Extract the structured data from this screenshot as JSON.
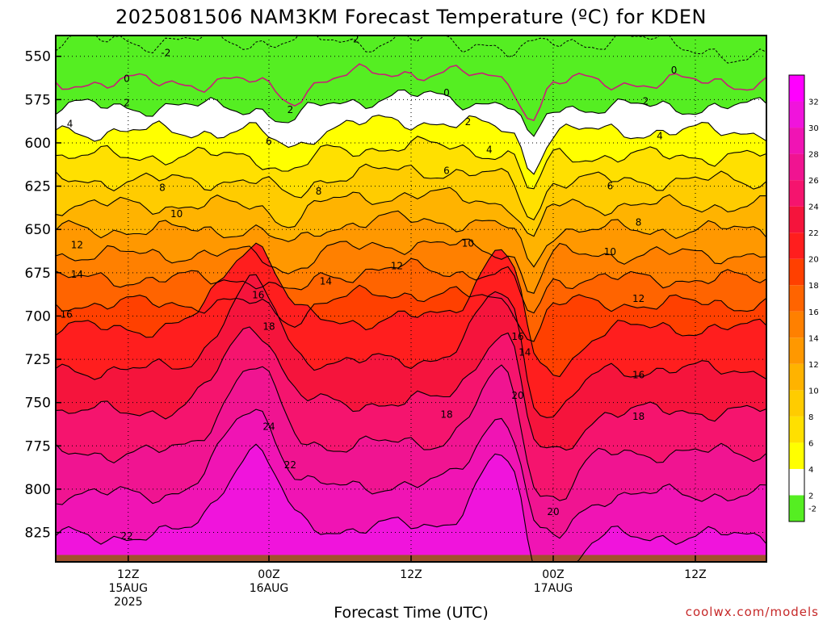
{
  "chart_data": {
    "type": "contour",
    "title": "2025081506 NAM3KM Forecast Temperature (ºC) for KDEN",
    "xlabel": "Forecast Time (UTC)",
    "y_ticks": [
      "550",
      "575",
      "600",
      "625",
      "650",
      "675",
      "700",
      "725",
      "750",
      "775",
      "800",
      "825"
    ],
    "x_ticks": [
      {
        "l1": "12Z",
        "l2": "15AUG",
        "l3": "2025"
      },
      {
        "l1": "00Z",
        "l2": "16AUG",
        "l3": ""
      },
      {
        "l1": "12Z",
        "l2": "",
        "l3": ""
      },
      {
        "l1": "00Z",
        "l2": "17AUG",
        "l3": ""
      },
      {
        "l1": "12Z",
        "l2": "",
        "l3": ""
      }
    ],
    "ylim_hpa": [
      538,
      842
    ],
    "colorbar": [
      {
        "label": "-2",
        "color": "#55ee22"
      },
      {
        "label": "2",
        "color": "#ffffff"
      },
      {
        "label": "4",
        "color": "#ffff00"
      },
      {
        "label": "6",
        "color": "#ffe000"
      },
      {
        "label": "8",
        "color": "#ffcc00"
      },
      {
        "label": "10",
        "color": "#ffb300"
      },
      {
        "label": "12",
        "color": "#ff9800"
      },
      {
        "label": "14",
        "color": "#ff8000"
      },
      {
        "label": "16",
        "color": "#ff6400"
      },
      {
        "label": "18",
        "color": "#ff4000"
      },
      {
        "label": "20",
        "color": "#ff1e1e"
      },
      {
        "label": "22",
        "color": "#f5143c"
      },
      {
        "label": "24",
        "color": "#f5146e"
      },
      {
        "label": "26",
        "color": "#f01491"
      },
      {
        "label": "28",
        "color": "#f014b4"
      },
      {
        "label": "30",
        "color": "#f014dc"
      },
      {
        "label": "32",
        "color": "#ff00ff"
      }
    ],
    "contour_labels": [
      {
        "text": "-2",
        "x": 0.42,
        "p": 540
      },
      {
        "text": "-2",
        "x": 0.155,
        "p": 548
      },
      {
        "text": "0",
        "x": 0.1,
        "p": 563
      },
      {
        "text": "0",
        "x": 0.55,
        "p": 571
      },
      {
        "text": "0",
        "x": 0.87,
        "p": 558
      },
      {
        "text": "2",
        "x": 0.1,
        "p": 577
      },
      {
        "text": "2",
        "x": 0.33,
        "p": 581
      },
      {
        "text": "2",
        "x": 0.58,
        "p": 588
      },
      {
        "text": "2",
        "x": 0.83,
        "p": 576
      },
      {
        "text": "4",
        "x": 0.02,
        "p": 589
      },
      {
        "text": "4",
        "x": 0.61,
        "p": 604
      },
      {
        "text": "4",
        "x": 0.85,
        "p": 596
      },
      {
        "text": "6",
        "x": 0.3,
        "p": 599
      },
      {
        "text": "6",
        "x": 0.55,
        "p": 616
      },
      {
        "text": "6",
        "x": 0.78,
        "p": 625
      },
      {
        "text": "8",
        "x": 0.15,
        "p": 626
      },
      {
        "text": "8",
        "x": 0.37,
        "p": 628
      },
      {
        "text": "8",
        "x": 0.82,
        "p": 646
      },
      {
        "text": "10",
        "x": 0.17,
        "p": 641
      },
      {
        "text": "10",
        "x": 0.58,
        "p": 658
      },
      {
        "text": "10",
        "x": 0.78,
        "p": 663
      },
      {
        "text": "12",
        "x": 0.03,
        "p": 659
      },
      {
        "text": "12",
        "x": 0.48,
        "p": 671
      },
      {
        "text": "12",
        "x": 0.82,
        "p": 690
      },
      {
        "text": "14",
        "x": 0.03,
        "p": 676
      },
      {
        "text": "14",
        "x": 0.38,
        "p": 680
      },
      {
        "text": "14",
        "x": 0.66,
        "p": 721
      },
      {
        "text": "16",
        "x": 0.015,
        "p": 699
      },
      {
        "text": "16",
        "x": 0.285,
        "p": 688
      },
      {
        "text": "16",
        "x": 0.65,
        "p": 712
      },
      {
        "text": "16",
        "x": 0.82,
        "p": 734
      },
      {
        "text": "18",
        "x": 0.3,
        "p": 706
      },
      {
        "text": "18",
        "x": 0.55,
        "p": 757
      },
      {
        "text": "18",
        "x": 0.82,
        "p": 758
      },
      {
        "text": "20",
        "x": 0.65,
        "p": 746
      },
      {
        "text": "20",
        "x": 0.7,
        "p": 813
      },
      {
        "text": "22",
        "x": 0.33,
        "p": 786
      },
      {
        "text": "22",
        "x": 0.1,
        "p": 827
      },
      {
        "text": "24",
        "x": 0.3,
        "p": 764
      }
    ]
  },
  "footer": {
    "credit": "coolwx.com/models"
  }
}
